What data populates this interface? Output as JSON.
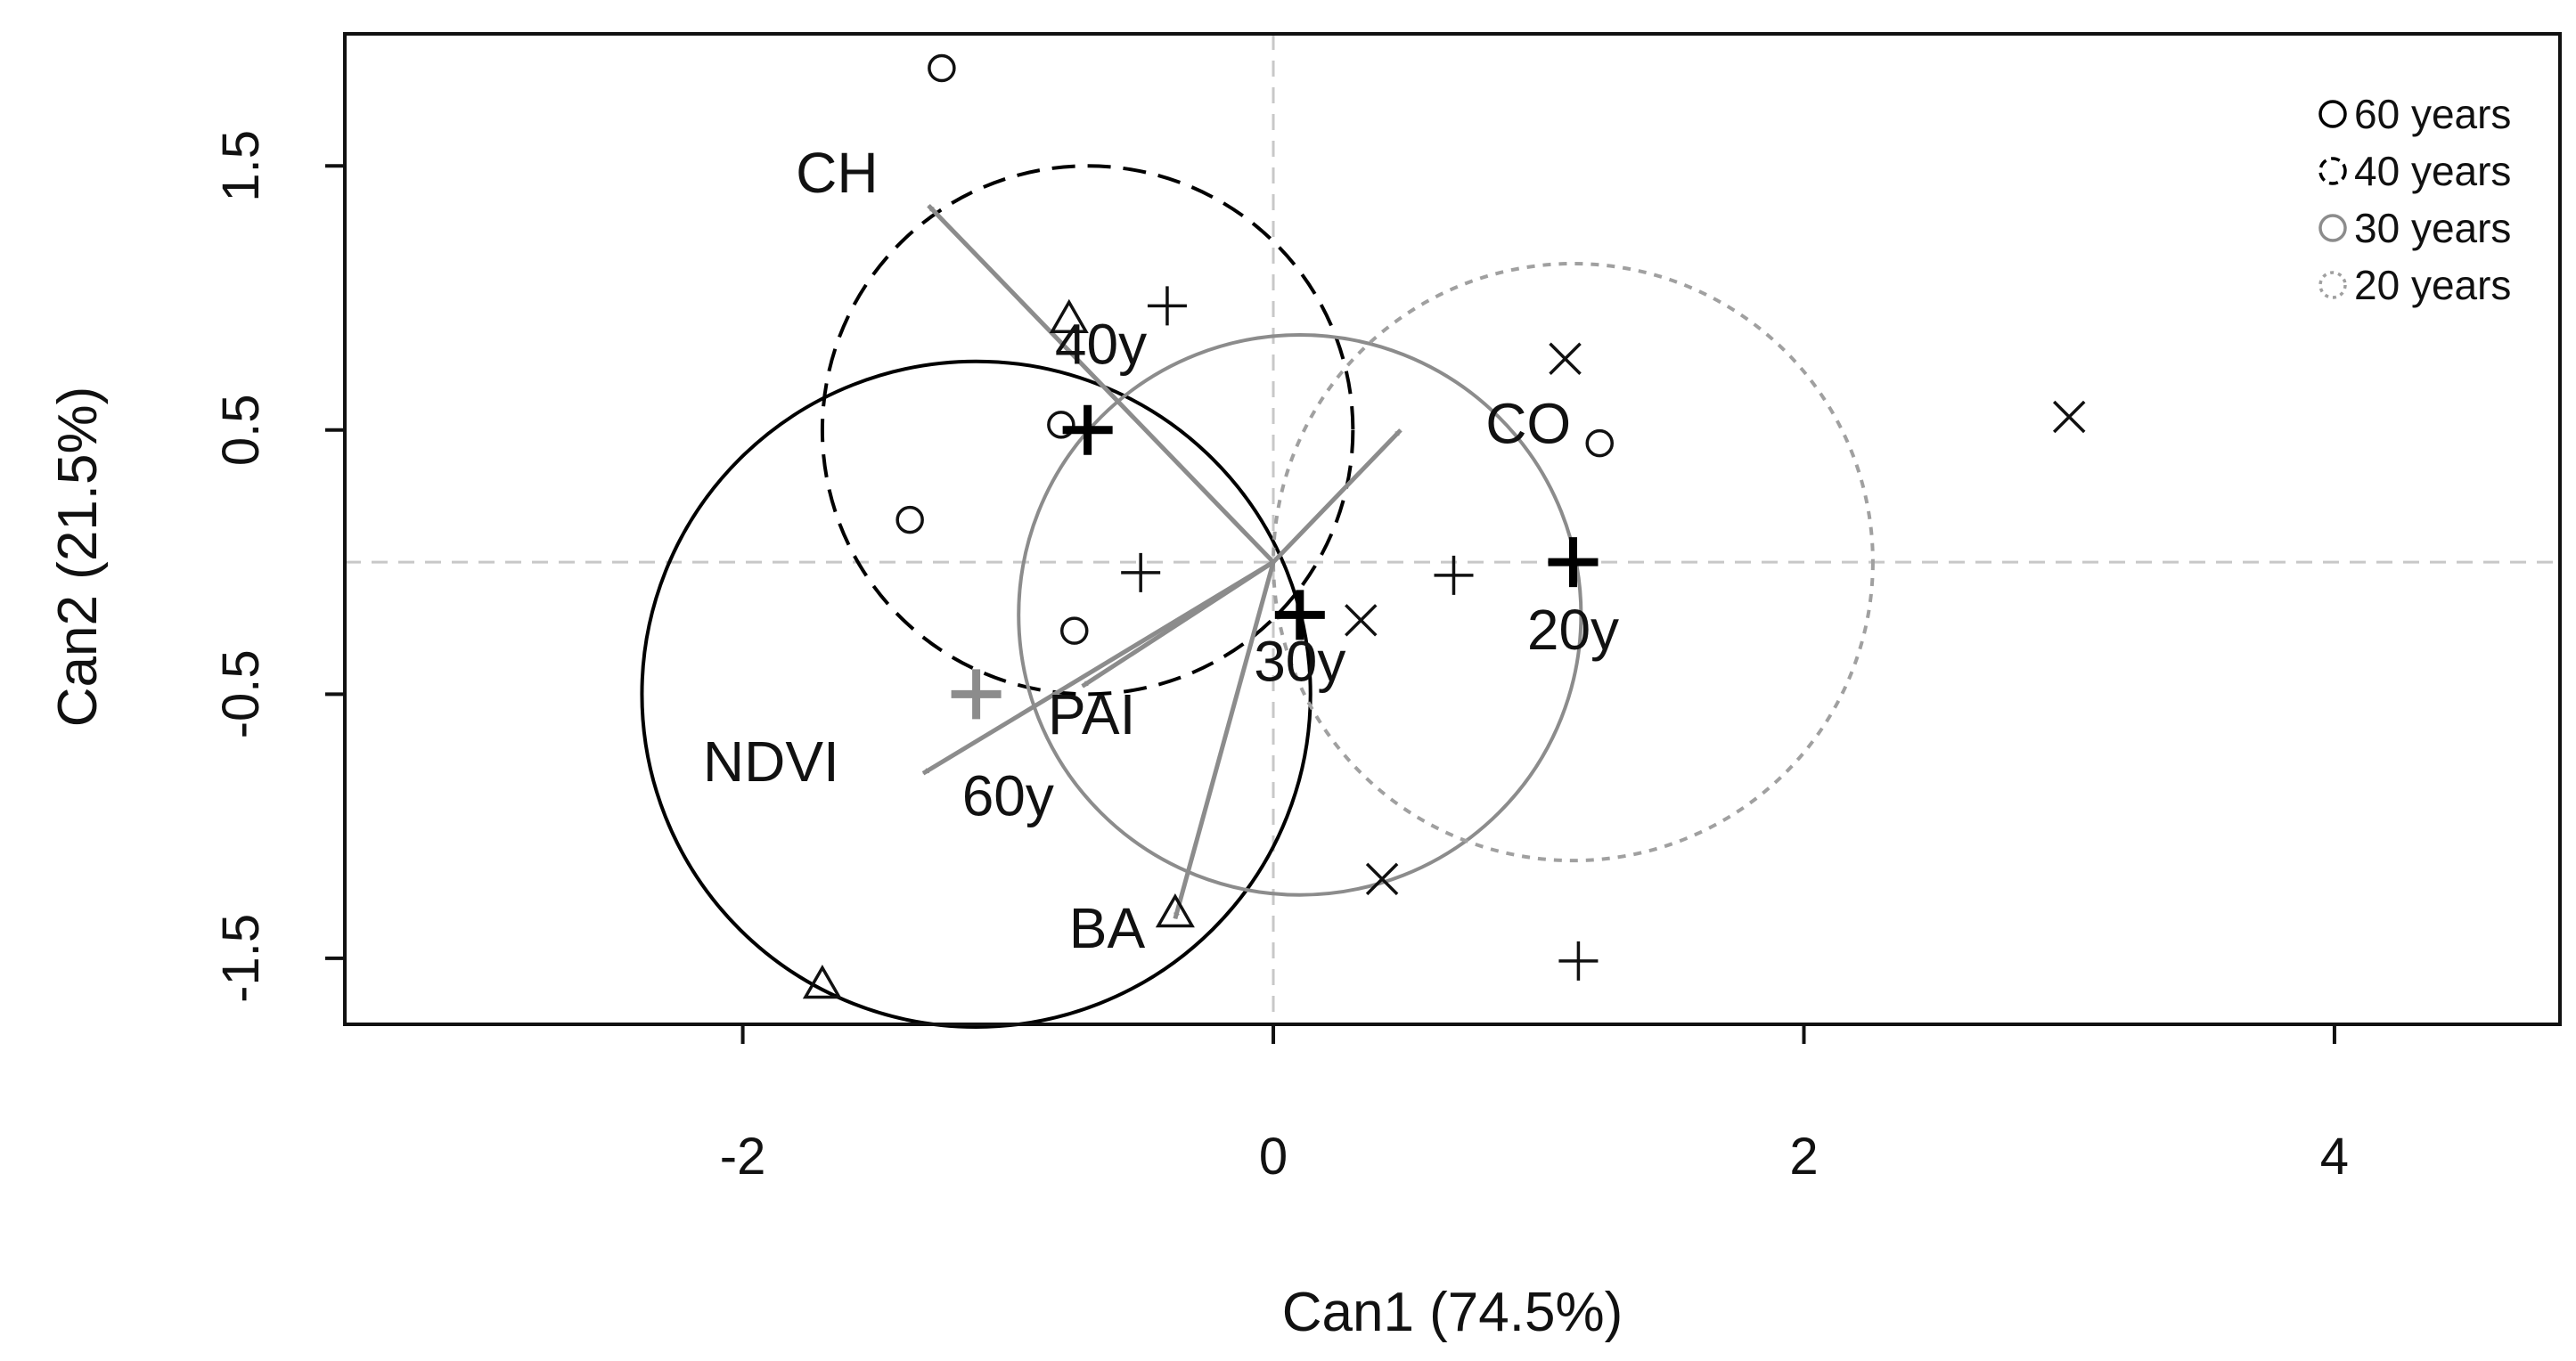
{
  "chart_data": {
    "type": "scatter",
    "title": "",
    "xlabel": "Can1 (74.5%)",
    "ylabel": "Can2 (21.5%)",
    "xlim": [
      -3.5,
      4.85
    ],
    "ylim": [
      -1.75,
      2.0
    ],
    "x_ticks": [
      -2,
      0,
      2,
      4
    ],
    "x_tick_labels": [
      "-2",
      "0",
      "2",
      "4"
    ],
    "y_ticks": [
      -1.5,
      -0.5,
      0.5,
      1.5
    ],
    "y_tick_labels": [
      "-1.5",
      "-0.5",
      "0.5",
      "1.5"
    ],
    "grid": false,
    "reference_lines": {
      "x": 0,
      "y": 0,
      "color": "#c8c8c8",
      "style": "dashed"
    },
    "legend": {
      "placement": "top-right",
      "entries": [
        {
          "label": "60 years",
          "color": "#000000",
          "dash": "solid"
        },
        {
          "label": "40 years",
          "color": "#000000",
          "dash": "dashed"
        },
        {
          "label": "30 years",
          "color": "#8c8c8c",
          "dash": "solid"
        },
        {
          "label": "20 years",
          "color": "#a0a0a0",
          "dash": "dotted"
        }
      ]
    },
    "groups": [
      {
        "name": "60y",
        "color": "#000000",
        "dash": "solid",
        "center": [
          -1.12,
          -0.5
        ],
        "radius": 1.26,
        "centroid_marker_color": "#8c8c8c"
      },
      {
        "name": "40y",
        "color": "#000000",
        "dash": "dashed",
        "center": [
          -0.7,
          0.5
        ],
        "radius": 1.0,
        "centroid_marker_color": "#000000"
      },
      {
        "name": "30y",
        "color": "#8c8c8c",
        "dash": "solid",
        "center": [
          0.1,
          -0.2
        ],
        "radius": 1.06,
        "centroid_marker_color": "#000000"
      },
      {
        "name": "20y",
        "color": "#a0a0a0",
        "dash": "dotted",
        "center": [
          1.13,
          0.0
        ],
        "radius": 1.13,
        "centroid_marker_color": "#000000"
      }
    ],
    "group_labels": [
      {
        "text": "40y",
        "x": -0.65,
        "y": 0.75
      },
      {
        "text": "30y",
        "x": 0.1,
        "y": -0.45
      },
      {
        "text": "20y",
        "x": 1.13,
        "y": -0.33
      },
      {
        "text": "60y",
        "x": -1.0,
        "y": -0.96
      }
    ],
    "points": [
      {
        "x": -1.25,
        "y": 1.87,
        "marker": "circle"
      },
      {
        "x": -0.8,
        "y": 0.52,
        "marker": "circle"
      },
      {
        "x": -1.37,
        "y": 0.16,
        "marker": "circle"
      },
      {
        "x": -0.75,
        "y": -0.26,
        "marker": "circle"
      },
      {
        "x": 1.23,
        "y": 0.45,
        "marker": "circle"
      },
      {
        "x": -0.77,
        "y": 0.92,
        "marker": "triangle"
      },
      {
        "x": -0.37,
        "y": -1.33,
        "marker": "triangle"
      },
      {
        "x": -1.7,
        "y": -1.6,
        "marker": "triangle"
      },
      {
        "x": -0.4,
        "y": 0.97,
        "marker": "plus"
      },
      {
        "x": -0.5,
        "y": -0.04,
        "marker": "plus"
      },
      {
        "x": 0.68,
        "y": -0.05,
        "marker": "plus"
      },
      {
        "x": 1.15,
        "y": -1.51,
        "marker": "plus"
      },
      {
        "x": 1.1,
        "y": 0.77,
        "marker": "cross"
      },
      {
        "x": 3.0,
        "y": 0.55,
        "marker": "cross"
      },
      {
        "x": 0.33,
        "y": -0.22,
        "marker": "cross"
      },
      {
        "x": 0.41,
        "y": -1.2,
        "marker": "cross"
      }
    ],
    "vectors": [
      {
        "label": "CH",
        "x": -1.3,
        "y": 1.35,
        "label_x": -1.8,
        "label_y": 1.4
      },
      {
        "label": "CO",
        "x": 0.48,
        "y": 0.5,
        "label_x": 0.8,
        "label_y": 0.45
      },
      {
        "label": "PAI",
        "x": -0.72,
        "y": -0.47,
        "label_x": -0.85,
        "label_y": -0.65
      },
      {
        "label": "NDVI",
        "x": -1.32,
        "y": -0.8,
        "label_x": -2.15,
        "label_y": -0.83
      },
      {
        "label": "BA",
        "x": -0.37,
        "y": -1.35,
        "label_x": -0.77,
        "label_y": -1.46
      }
    ],
    "vector_color": "#8c8c8c"
  }
}
